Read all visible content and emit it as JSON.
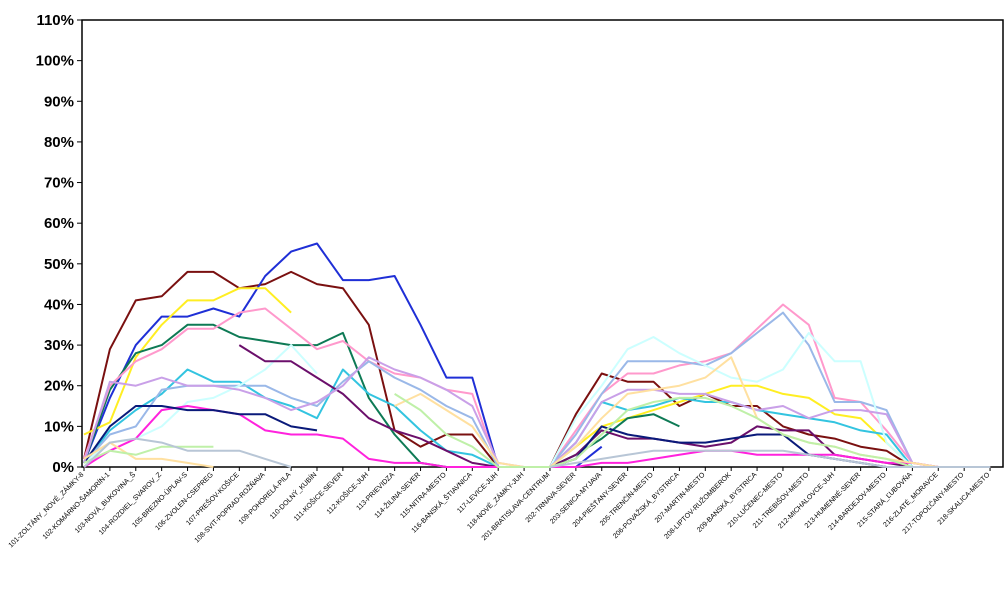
{
  "chart_data": {
    "type": "line",
    "title": "",
    "xlabel": "",
    "ylabel": "",
    "ylim": [
      0,
      110
    ],
    "y_ticks": [
      "0%",
      "10%",
      "20%",
      "30%",
      "40%",
      "50%",
      "60%",
      "70%",
      "80%",
      "90%",
      "100%",
      "110%"
    ],
    "grid": false,
    "legend": "none",
    "categories": [
      "101-ZOLTÁNY_NOVÉ_ZÁMKY-8",
      "102-KOMÁRNO-ŠAMORÍN-1",
      "103-NOVÁ_BUKOVINA_Š",
      "104-ROZDIEL_SVAROV_Z",
      "105-BREZNO-ÚPLAV-S",
      "106-ZVOLEN-CSEPREG",
      "107-PREŠOV-KOŠICE",
      "108-SVIT-POPRAD-ROŽŇAVA",
      "109-POHORELÁ-PILA",
      "110-DOLNÝ_KUBÍN",
      "111-KOŠICE-SEVER",
      "112-KOŠICE-JUH",
      "113-PRIEVIDZA",
      "114-ŽILINA-SEVER",
      "115-NITRA-MESTO",
      "116-BANSKÁ_ŠTIAVNICA",
      "117-LEVICE-JUH",
      "118-NOVÉ_ZÁMKY-JUH",
      "201-BRATISLAVA-CENTRUM",
      "202-TRNAVA-SEVER",
      "203-SENICA-MYJAVA",
      "204-PIEŠŤANY-SEVER",
      "205-TRENČÍN-MESTO",
      "206-POVAŽSKÁ_BYSTRICA",
      "207-MARTIN-MESTO",
      "208-LIPTOV-RUŽOMBEROK",
      "209-BANSKÁ_BYSTRICA",
      "210-LUČENEC-MESTO",
      "211-TREBIŠOV-MESTO",
      "212-MICHALOVCE-JUH",
      "213-HUMENNÉ-SEVER",
      "214-BARDEJOV-MESTO",
      "215-STARÁ_ĽUBOVŇA",
      "216-ZLATÉ_MORAVCE",
      "217-TOPOĽČANY-MESTO",
      "218-SKALICA-MESTO"
    ],
    "series": [
      {
        "color": "#7a1010",
        "values": [
          2,
          29,
          41,
          42,
          48,
          48,
          44,
          45,
          48,
          45,
          44,
          35,
          9,
          5,
          8,
          8,
          0,
          0,
          0,
          13,
          23,
          21,
          21,
          15,
          18,
          15,
          15,
          10,
          8,
          7,
          5,
          4,
          0,
          0,
          0,
          0
        ]
      },
      {
        "color": "#1f2fd6",
        "values": [
          1,
          17,
          30,
          37,
          37,
          39,
          37,
          47,
          53,
          55,
          46,
          46,
          47,
          35,
          22,
          22,
          0,
          0,
          0,
          0,
          5,
          null,
          null,
          null,
          null,
          null,
          null,
          null,
          null,
          null,
          null,
          null,
          null,
          null,
          null,
          null
        ]
      },
      {
        "color": "#ffee22",
        "values": [
          8,
          11,
          27,
          35,
          41,
          41,
          44,
          44,
          38,
          null,
          null,
          null,
          null,
          null,
          null,
          null,
          null,
          null,
          0,
          5,
          10,
          12,
          14,
          16,
          18,
          20,
          20,
          18,
          17,
          13,
          12,
          6,
          0,
          0,
          0,
          0
        ]
      },
      {
        "color": "#0e7a55",
        "values": [
          1,
          19,
          28,
          30,
          35,
          35,
          32,
          31,
          30,
          30,
          33,
          17,
          8,
          1,
          0,
          0,
          0,
          0,
          0,
          3,
          7,
          12,
          13,
          10,
          null,
          null,
          null,
          null,
          null,
          null,
          null,
          null,
          null,
          null,
          null,
          null
        ]
      },
      {
        "color": "#ff99cc",
        "values": [
          2,
          20,
          26,
          29,
          34,
          34,
          38,
          39,
          34,
          29,
          31,
          26,
          23,
          22,
          19,
          18,
          0,
          0,
          0,
          9,
          18,
          23,
          23,
          25,
          26,
          28,
          34,
          40,
          35,
          17,
          16,
          9,
          1,
          0,
          0,
          0
        ]
      },
      {
        "color": "#33c4e0",
        "values": [
          1,
          9,
          14,
          18,
          24,
          21,
          21,
          17,
          15,
          12,
          24,
          18,
          15,
          9,
          4,
          3,
          0,
          0,
          0,
          6,
          16,
          14,
          15,
          17,
          16,
          16,
          14,
          13,
          12,
          11,
          9,
          8,
          0,
          0,
          0,
          0
        ]
      },
      {
        "color": "#9ab8e8",
        "values": [
          1,
          8,
          10,
          19,
          20,
          20,
          20,
          20,
          17,
          15,
          21,
          26,
          22,
          19,
          15,
          12,
          0,
          0,
          0,
          8,
          18,
          26,
          26,
          26,
          25,
          28,
          33,
          38,
          30,
          16,
          16,
          14,
          1,
          0,
          0,
          0
        ]
      },
      {
        "color": "#ccffff",
        "values": [
          1,
          6,
          7,
          10,
          16,
          17,
          20,
          24,
          30,
          23,
          null,
          null,
          null,
          null,
          null,
          null,
          null,
          null,
          0,
          12,
          20,
          29,
          32,
          28,
          25,
          22,
          21,
          24,
          33,
          26,
          26,
          6,
          0,
          0,
          0,
          0
        ]
      },
      {
        "color": "#6b0f6b",
        "values": [
          null,
          null,
          null,
          null,
          null,
          null,
          30,
          26,
          26,
          22,
          18,
          12,
          9,
          7,
          4,
          1,
          0,
          0,
          0,
          3,
          9,
          7,
          7,
          6,
          5,
          6,
          10,
          9,
          9,
          3,
          2,
          1,
          0,
          0,
          0,
          0
        ]
      },
      {
        "color": "#ff22dd",
        "values": [
          0,
          4,
          7,
          14,
          15,
          14,
          13,
          9,
          8,
          8,
          7,
          2,
          1,
          1,
          0,
          0,
          0,
          0,
          0,
          0,
          1,
          1,
          2,
          3,
          4,
          4,
          3,
          3,
          3,
          3,
          2,
          1,
          1,
          0,
          0,
          0
        ]
      },
      {
        "color": "#0a1a7a",
        "values": [
          1,
          10,
          15,
          15,
          14,
          14,
          13,
          13,
          10,
          9,
          null,
          null,
          null,
          null,
          null,
          null,
          null,
          null,
          0,
          2,
          10,
          8,
          7,
          6,
          6,
          7,
          8,
          8,
          3,
          2,
          1,
          0,
          0,
          0,
          0,
          0
        ]
      },
      {
        "color": "#c9a0e8",
        "values": [
          1,
          21,
          20,
          22,
          20,
          20,
          19,
          17,
          14,
          16,
          20,
          27,
          24,
          22,
          19,
          15,
          1,
          0,
          0,
          6,
          16,
          19,
          19,
          18,
          18,
          16,
          14,
          15,
          12,
          14,
          14,
          13,
          1,
          0,
          0,
          0
        ]
      },
      {
        "color": "#ffe0a0",
        "values": [
          2,
          6,
          2,
          2,
          1,
          0,
          null,
          null,
          null,
          null,
          null,
          null,
          15,
          18,
          14,
          10,
          1,
          0,
          0,
          5,
          12,
          18,
          19,
          20,
          22,
          27,
          12,
          8,
          6,
          5,
          3,
          2,
          1,
          0,
          0,
          0
        ]
      },
      {
        "color": "#bff0a8",
        "values": [
          1,
          4,
          3,
          5,
          5,
          5,
          null,
          null,
          null,
          null,
          null,
          null,
          18,
          14,
          8,
          5,
          0,
          0,
          0,
          2,
          8,
          14,
          16,
          17,
          17,
          15,
          12,
          8,
          6,
          5,
          3,
          2,
          0,
          0,
          0,
          0
        ]
      },
      {
        "color": "#b8c6d6",
        "values": [
          0,
          6,
          7,
          6,
          4,
          4,
          4,
          2,
          0,
          null,
          null,
          null,
          null,
          null,
          null,
          null,
          null,
          null,
          0,
          1,
          2,
          3,
          4,
          4,
          4,
          4,
          4,
          4,
          3,
          2,
          1,
          0,
          0,
          0,
          0,
          0
        ]
      }
    ]
  }
}
